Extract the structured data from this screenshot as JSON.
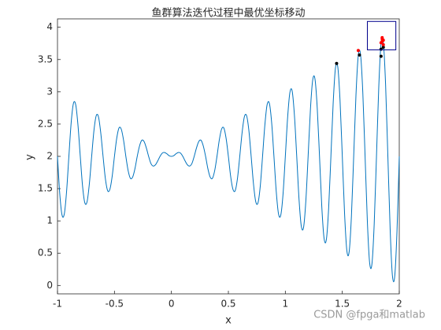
{
  "chart_data": {
    "type": "line",
    "title": "鱼群算法迭代过程中最优坐标移动",
    "x_label": "x",
    "y_label": "y",
    "watermark": "CSDN @fpga和matlab",
    "xlim": [
      -1,
      2
    ],
    "ylim": [
      -0.13,
      4.13
    ],
    "xticks": [
      -1,
      -0.5,
      0,
      0.5,
      1,
      1.5,
      2
    ],
    "yticks": [
      0,
      0.5,
      1,
      1.5,
      2,
      2.5,
      3,
      3.5,
      4
    ],
    "x": [
      -1,
      -0.98,
      -0.96,
      -0.94,
      -0.92,
      -0.9,
      -0.88,
      -0.86,
      -0.84,
      -0.82,
      -0.8,
      -0.78,
      -0.76,
      -0.74,
      -0.72,
      -0.7,
      -0.68,
      -0.66,
      -0.64,
      -0.62,
      -0.6,
      -0.58,
      -0.56,
      -0.54,
      -0.52,
      -0.5,
      -0.48,
      -0.46,
      -0.44,
      -0.42,
      -0.4,
      -0.38,
      -0.36,
      -0.34,
      -0.32,
      -0.3,
      -0.28,
      -0.26,
      -0.24,
      -0.22,
      -0.2,
      -0.18,
      -0.16,
      -0.14,
      -0.12,
      -0.1,
      -0.08,
      -0.06,
      -0.04,
      -0.02,
      0,
      0.02,
      0.04,
      0.06,
      0.08,
      0.1,
      0.12,
      0.14,
      0.16,
      0.18,
      0.2,
      0.22,
      0.24,
      0.26,
      0.28,
      0.3,
      0.32,
      0.34,
      0.36,
      0.38,
      0.4,
      0.42,
      0.44,
      0.46,
      0.48,
      0.5,
      0.52,
      0.54,
      0.56,
      0.58,
      0.6,
      0.62,
      0.64,
      0.66,
      0.68,
      0.7,
      0.72,
      0.74,
      0.76,
      0.78,
      0.8,
      0.82,
      0.84,
      0.86,
      0.88,
      0.9,
      0.92,
      0.94,
      0.96,
      0.98,
      1,
      1.02,
      1.04,
      1.06,
      1.08,
      1.1,
      1.12,
      1.14,
      1.16,
      1.18,
      1.2,
      1.22,
      1.24,
      1.26,
      1.28,
      1.3,
      1.32,
      1.34,
      1.36,
      1.38,
      1.4,
      1.42,
      1.44,
      1.46,
      1.48,
      1.5,
      1.52,
      1.54,
      1.56,
      1.58,
      1.6,
      1.62,
      1.64,
      1.66,
      1.68,
      1.7,
      1.72,
      1.74,
      1.76,
      1.78,
      1.8,
      1.82,
      1.84,
      1.86,
      1.88,
      1.9,
      1.92,
      1.94,
      1.96,
      1.98,
      2
    ],
    "series": [
      {
        "color": "#0072bd",
        "values": [
          2,
          1.42,
          1.09,
          1.11,
          1.46,
          2,
          2.52,
          2.82,
          2.8,
          2.48,
          2,
          1.54,
          1.28,
          1.3,
          1.58,
          2,
          2.4,
          2.63,
          2.61,
          2.36,
          2,
          1.66,
          1.47,
          1.49,
          1.69,
          2,
          2.28,
          2.44,
          2.42,
          2.25,
          2,
          1.78,
          1.66,
          1.68,
          1.81,
          2,
          2.16,
          2.25,
          2.23,
          2.13,
          2,
          1.89,
          1.85,
          1.87,
          1.93,
          2,
          2.05,
          2.06,
          2.04,
          2.01,
          2,
          2.01,
          2.04,
          2.06,
          2.05,
          2,
          1.93,
          1.87,
          1.85,
          1.89,
          2,
          2.13,
          2.23,
          2.25,
          2.16,
          2,
          1.81,
          1.68,
          1.66,
          1.78,
          2,
          2.25,
          2.42,
          2.44,
          2.28,
          2,
          1.69,
          1.49,
          1.47,
          1.66,
          2,
          2.36,
          2.61,
          2.63,
          2.4,
          2,
          1.58,
          1.3,
          1.28,
          1.54,
          2,
          2.48,
          2.8,
          2.82,
          2.52,
          2,
          1.46,
          1.11,
          1.09,
          1.42,
          2,
          2.6,
          2.99,
          3.01,
          2.63,
          2,
          1.34,
          0.92,
          0.9,
          1.31,
          2,
          2.72,
          3.18,
          3.2,
          2.75,
          2,
          1.22,
          0.73,
          0.71,
          1.19,
          2,
          2.83,
          3.37,
          3.39,
          2.87,
          2,
          1.11,
          0.54,
          0.52,
          1.07,
          2,
          2.95,
          3.56,
          3.58,
          2.99,
          2,
          0.99,
          0.35,
          0.33,
          0.95,
          2,
          3.07,
          3.75,
          3.77,
          3.11,
          2,
          0.87,
          0.15,
          0.14,
          0.84,
          2
        ]
      }
    ],
    "points": [
      {
        "color": "#000000",
        "x": [
          1.45,
          1.65,
          1.84,
          1.84,
          1.86
        ],
        "values": [
          3.44,
          3.57,
          3.55,
          3.66,
          3.69
        ]
      },
      {
        "color": "#ff0000",
        "x": [
          1.64,
          1.85,
          1.85,
          1.86,
          1.85,
          1.84,
          1.86
        ],
        "values": [
          3.64,
          3.84,
          3.82,
          3.8,
          3.78,
          3.76,
          3.73
        ]
      }
    ],
    "highlight_box": {
      "color": "#00008b",
      "xlim": [
        1.72,
        1.97
      ],
      "ylim": [
        3.65,
        4.09
      ]
    }
  }
}
